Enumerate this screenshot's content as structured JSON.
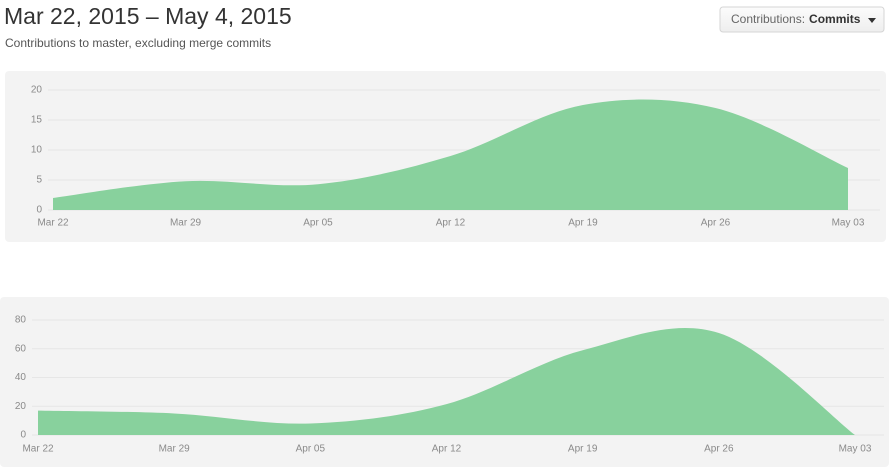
{
  "header": {
    "title": "Mar 22, 2015 – May 4, 2015",
    "subtitle": "Contributions to master, excluding merge commits"
  },
  "filter": {
    "label": "Contributions:",
    "value": "Commits"
  },
  "chart_data": [
    {
      "type": "area",
      "categories": [
        "Mar 22",
        "Mar 29",
        "Apr 05",
        "Apr 12",
        "Apr 19",
        "Apr 26",
        "May 03"
      ],
      "series": [
        {
          "color": "#88d19d",
          "values": [
            2,
            4.8,
            4.3,
            9,
            17.5,
            17,
            7
          ]
        }
      ],
      "ylim": [
        0,
        21
      ],
      "yticks": [
        0,
        5,
        10,
        15,
        20
      ],
      "grid": true
    },
    {
      "type": "area",
      "categories": [
        "Mar 22",
        "Mar 29",
        "Apr 05",
        "Apr 12",
        "Apr 19",
        "Apr 26",
        "May 03"
      ],
      "series": [
        {
          "color": "#88d19d",
          "values": [
            17,
            15,
            8,
            21.5,
            59,
            71,
            0
          ]
        }
      ],
      "ylim": [
        0,
        83
      ],
      "yticks": [
        0,
        20,
        40,
        60,
        80
      ],
      "grid": true
    }
  ]
}
